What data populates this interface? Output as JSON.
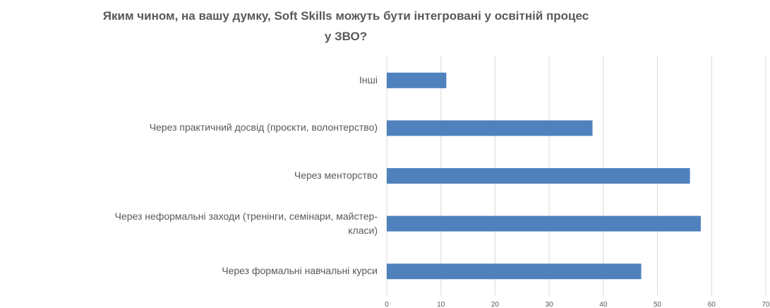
{
  "chart_data": {
    "type": "bar",
    "orientation": "horizontal",
    "title": "Яким чином, на вашу думку, Soft Skills можуть бути інтегровані у освітній процес у ЗВО?",
    "categories": [
      "Інші",
      "Через практичний досвід (проєкти, волонтерство)",
      "Через менторство",
      "Через неформальні заходи (тренінги, семінари, майстер-класи)",
      "Через формальні навчальні курси"
    ],
    "category_lines": [
      [
        "Інші"
      ],
      [
        "Через практичний досвід (проєкти, волонтерство)"
      ],
      [
        "Через менторство"
      ],
      [
        "Через неформальні заходи (тренінги, семінари, майстер-",
        "класи)"
      ],
      [
        "Через формальні навчальні курси"
      ]
    ],
    "values": [
      11,
      38,
      56,
      58,
      47
    ],
    "xlim": [
      0,
      70
    ],
    "xticks": [
      "0",
      "10",
      "20",
      "30",
      "40",
      "50",
      "60",
      "70"
    ],
    "grid": true,
    "bar_color": "#4f81bd",
    "grid_color": "#d9d9d9",
    "legend": "none"
  }
}
